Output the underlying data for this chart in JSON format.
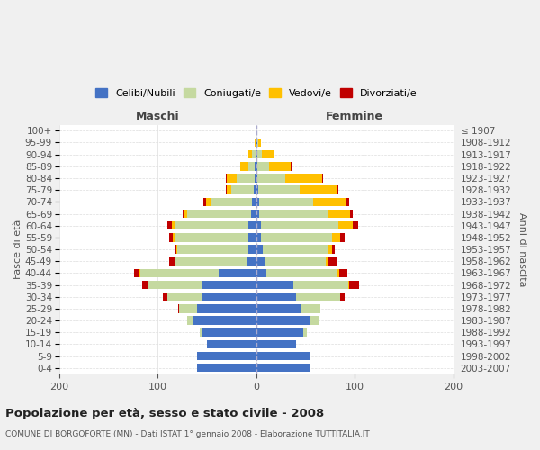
{
  "age_groups": [
    "0-4",
    "5-9",
    "10-14",
    "15-19",
    "20-24",
    "25-29",
    "30-34",
    "35-39",
    "40-44",
    "45-49",
    "50-54",
    "55-59",
    "60-64",
    "65-69",
    "70-74",
    "75-79",
    "80-84",
    "85-89",
    "90-94",
    "95-99",
    "100+"
  ],
  "birth_years": [
    "2003-2007",
    "1998-2002",
    "1993-1997",
    "1988-1992",
    "1983-1987",
    "1978-1982",
    "1973-1977",
    "1968-1972",
    "1963-1967",
    "1958-1962",
    "1953-1957",
    "1948-1952",
    "1943-1947",
    "1938-1942",
    "1933-1937",
    "1928-1932",
    "1923-1927",
    "1918-1922",
    "1913-1917",
    "1908-1912",
    "≤ 1907"
  ],
  "male_celibi": [
    60,
    60,
    50,
    55,
    65,
    60,
    55,
    55,
    38,
    10,
    8,
    8,
    8,
    5,
    4,
    3,
    2,
    2,
    1,
    1,
    0
  ],
  "male_coniugati": [
    0,
    0,
    0,
    2,
    5,
    18,
    35,
    55,
    80,
    72,
    72,
    75,
    75,
    65,
    42,
    22,
    18,
    6,
    3,
    0,
    0
  ],
  "male_vedovi": [
    0,
    0,
    0,
    0,
    0,
    0,
    0,
    0,
    1,
    1,
    1,
    2,
    3,
    3,
    5,
    5,
    10,
    8,
    4,
    1,
    0
  ],
  "male_divorziati": [
    0,
    0,
    0,
    0,
    0,
    1,
    5,
    6,
    5,
    5,
    2,
    3,
    4,
    2,
    3,
    1,
    1,
    0,
    0,
    0,
    0
  ],
  "female_celibi": [
    55,
    55,
    40,
    48,
    55,
    45,
    40,
    38,
    10,
    8,
    7,
    5,
    5,
    3,
    3,
    2,
    1,
    1,
    1,
    1,
    0
  ],
  "female_coniugati": [
    0,
    0,
    0,
    3,
    8,
    20,
    45,
    55,
    72,
    62,
    65,
    72,
    78,
    70,
    55,
    42,
    28,
    12,
    5,
    1,
    0
  ],
  "female_vedovi": [
    0,
    0,
    0,
    0,
    0,
    0,
    0,
    1,
    2,
    3,
    5,
    8,
    15,
    22,
    33,
    38,
    38,
    22,
    12,
    3,
    0
  ],
  "female_divorziati": [
    0,
    0,
    0,
    0,
    0,
    0,
    5,
    10,
    8,
    8,
    3,
    5,
    5,
    3,
    3,
    1,
    1,
    1,
    0,
    0,
    0
  ],
  "colors": {
    "celibi": "#4472c4",
    "coniugati": "#c5d9a0",
    "vedovi": "#ffc000",
    "divorziati": "#c00000"
  },
  "title": "Popolazione per età, sesso e stato civile - 2008",
  "subtitle": "COMUNE DI BORGOFORTE (MN) - Dati ISTAT 1° gennaio 2008 - Elaborazione TUTTITALIA.IT",
  "xlabel_left": "Maschi",
  "xlabel_right": "Femmine",
  "ylabel_left": "Fasce di età",
  "ylabel_right": "Anni di nascita",
  "xlim": 200,
  "legend_labels": [
    "Celibi/Nubili",
    "Coniugati/e",
    "Vedovi/e",
    "Divorziati/e"
  ],
  "bg_color": "#f0f0f0",
  "plot_bg_color": "#ffffff",
  "grid_color": "#cccccc"
}
